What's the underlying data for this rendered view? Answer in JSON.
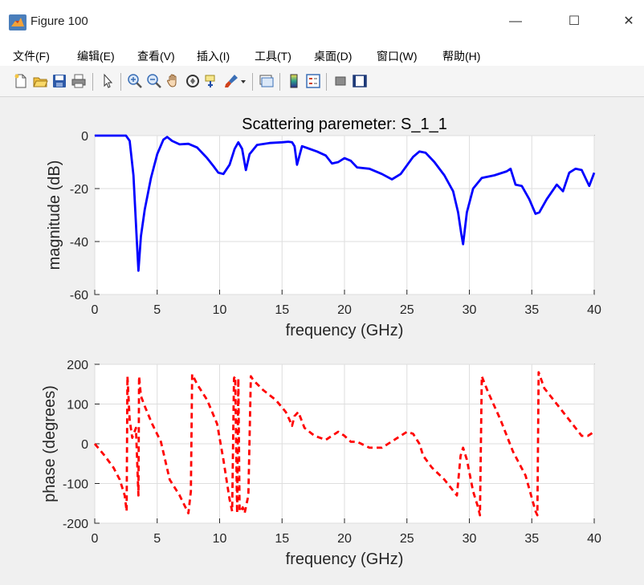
{
  "window": {
    "title": "Figure 100",
    "controls": {
      "minimize": "—",
      "maximize": "☐",
      "close": "✕"
    }
  },
  "menu": {
    "items": [
      "文件(F)",
      "编辑(E)",
      "查看(V)",
      "插入(I)",
      "工具(T)",
      "桌面(D)",
      "窗口(W)",
      "帮助(H)"
    ]
  },
  "toolbar": {
    "icons": [
      "new-figure-icon",
      "open-file-icon",
      "save-icon",
      "print-icon",
      "pointer-icon",
      "zoom-in-icon",
      "zoom-out-icon",
      "pan-hand-icon",
      "rotate-3d-icon",
      "data-cursor-icon",
      "brush-icon",
      "dropdown-arrow-icon",
      "link-plot-icon",
      "colorbar-icon",
      "legend-icon",
      "hide-plot-tools-icon",
      "show-plot-tools-icon"
    ]
  },
  "colors": {
    "magnitude_line": "#0000ff",
    "phase_line": "#ff0000",
    "axes_bg": "#ffffff",
    "grid": "#dedede"
  },
  "chart_data": [
    {
      "type": "line",
      "title": "Scattering paremeter: S_1_1",
      "xlabel": "frequency (GHz)",
      "ylabel": "magnitude (dB)",
      "xlim": [
        0,
        40
      ],
      "ylim": [
        -60,
        0
      ],
      "xticks": [
        0,
        5,
        10,
        15,
        20,
        25,
        30,
        35,
        40
      ],
      "yticks": [
        0,
        -20,
        -40,
        -60
      ],
      "grid": true,
      "series": [
        {
          "line_style": "solid",
          "color": "#0000ff",
          "x": [
            0,
            1,
            2,
            2.5,
            2.8,
            3.1,
            3.35,
            3.5,
            3.7,
            4.0,
            4.5,
            5.0,
            5.5,
            5.8,
            6.2,
            6.8,
            7.5,
            8.2,
            9.0,
            9.5,
            9.9,
            10.3,
            10.8,
            11.2,
            11.5,
            11.8,
            12.1,
            12.4,
            13.0,
            14.0,
            15.0,
            15.5,
            15.8,
            16.0,
            16.2,
            16.6,
            17.2,
            17.8,
            18.5,
            19.0,
            19.5,
            20.0,
            20.5,
            21.0,
            22.0,
            23.0,
            23.8,
            24.5,
            25.5,
            26.0,
            26.5,
            27.2,
            28.0,
            28.7,
            29.1,
            29.35,
            29.5,
            29.8,
            30.3,
            31.0,
            32.0,
            33.0,
            33.3,
            33.7,
            34.2,
            34.8,
            35.3,
            35.6,
            36.2,
            37.0,
            37.5,
            38.0,
            38.5,
            39.0,
            39.3,
            39.6,
            40.0
          ],
          "y": [
            0,
            0,
            0,
            0,
            -2,
            -15,
            -38,
            -51,
            -38,
            -28,
            -16,
            -7,
            -1.5,
            -0.5,
            -2,
            -3.3,
            -3.1,
            -4.5,
            -8.5,
            -11.5,
            -14,
            -14.5,
            -11,
            -5,
            -2.5,
            -5,
            -13,
            -7,
            -3.5,
            -2.8,
            -2.5,
            -2.3,
            -2.5,
            -4,
            -11,
            -4,
            -5,
            -6,
            -7.5,
            -10.5,
            -10,
            -8.5,
            -9.5,
            -12,
            -12.5,
            -14.5,
            -16.5,
            -14.5,
            -8,
            -6,
            -6.5,
            -10,
            -15,
            -21,
            -29,
            -37,
            -41,
            -29,
            -20,
            -16,
            -15,
            -13.5,
            -12.5,
            -18.5,
            -19,
            -24,
            -29.5,
            -29,
            -24,
            -18.5,
            -21,
            -14,
            -12.5,
            -13,
            -16,
            -19,
            -14
          ]
        }
      ]
    },
    {
      "type": "line",
      "title": "",
      "xlabel": "frequency (GHz)",
      "ylabel": "phase (degrees)",
      "xlim": [
        0,
        40
      ],
      "ylim": [
        -200,
        200
      ],
      "xticks": [
        0,
        5,
        10,
        15,
        20,
        25,
        30,
        35,
        40
      ],
      "yticks": [
        200,
        100,
        0,
        -100,
        -200
      ],
      "grid": true,
      "series": [
        {
          "line_style": "dashed",
          "color": "#ff0000",
          "x": [
            0,
            0.8,
            1.5,
            2.0,
            2.4,
            2.55,
            2.62,
            2.8,
            3.0,
            3.3,
            3.5,
            3.55,
            3.7,
            4.0,
            4.6,
            5.3,
            6.0,
            6.8,
            7.5,
            7.7,
            7.8,
            8.2,
            9.0,
            9.8,
            10.3,
            10.8,
            11.0,
            11.15,
            11.25,
            11.4,
            11.5,
            11.6,
            11.7,
            11.85,
            12.0,
            12.3,
            12.5,
            12.7,
            13.5,
            14.5,
            15.3,
            15.6,
            15.8,
            16.0,
            16.3,
            16.8,
            17.6,
            18.5,
            19.0,
            19.5,
            20.0,
            20.5,
            21.0,
            22.0,
            23.0,
            23.5,
            24.0,
            25.0,
            25.5,
            26.0,
            26.3,
            27.0,
            28.0,
            29.0,
            29.3,
            29.5,
            29.8,
            30.3,
            30.7,
            30.85,
            31.0,
            31.5,
            32.5,
            33.5,
            34.5,
            35.3,
            35.45,
            35.55,
            36.0,
            37.0,
            38.0,
            39.0,
            39.5,
            40.0
          ],
          "y": [
            0,
            -30,
            -60,
            -90,
            -130,
            -170,
            170,
            60,
            15,
            40,
            -130,
            170,
            120,
            95,
            50,
            5,
            -90,
            -130,
            -175,
            -120,
            175,
            150,
            110,
            50,
            -40,
            -140,
            -170,
            165,
            170,
            -175,
            165,
            -170,
            -170,
            -160,
            -175,
            -130,
            170,
            160,
            135,
            110,
            80,
            60,
            45,
            70,
            80,
            40,
            20,
            10,
            20,
            30,
            20,
            5,
            5,
            -10,
            -10,
            0,
            10,
            30,
            25,
            0,
            -30,
            -60,
            -90,
            -130,
            -30,
            -10,
            -40,
            -120,
            -160,
            -180,
            170,
            130,
            60,
            -20,
            -80,
            -170,
            -180,
            180,
            140,
            100,
            60,
            20,
            20,
            30
          ]
        }
      ]
    }
  ]
}
